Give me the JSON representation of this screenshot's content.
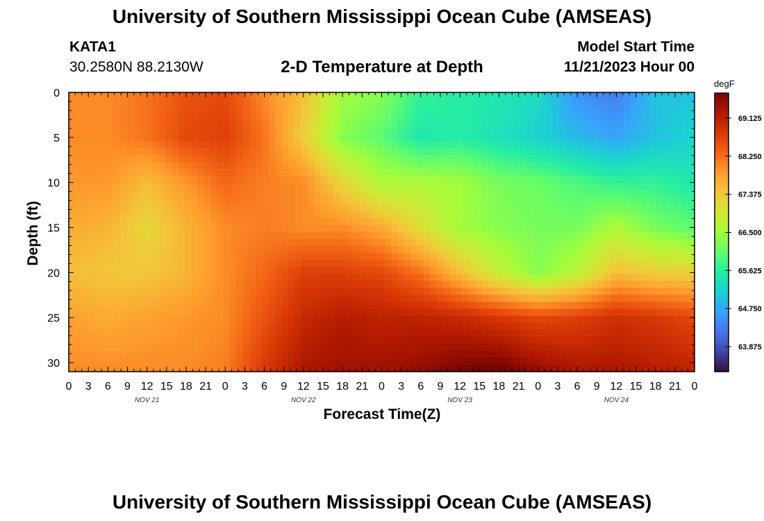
{
  "header": {
    "title": "University of Southern Mississippi Ocean Cube (AMSEAS)",
    "station_name": "KATA1",
    "station_coords": "30.2580N  88.2130W",
    "plot_title": "2-D Temperature at Depth",
    "model_start_label": "Model Start Time",
    "model_start_value": "11/21/2023 Hour 00"
  },
  "footer": {
    "title": "University of Southern Mississippi Ocean Cube (AMSEAS)"
  },
  "chart_data": {
    "type": "heatmap",
    "title": "2-D Temperature at Depth",
    "xlabel": "Forecast Time(Z)",
    "ylabel": "Depth (ft)",
    "units": "degF",
    "x_hours": [
      0,
      6,
      12,
      18,
      24,
      30,
      36,
      42,
      48,
      54,
      60,
      66,
      72,
      78,
      84,
      90,
      96
    ],
    "y_depths": [
      0,
      5,
      10,
      15,
      20,
      25,
      31
    ],
    "z": [
      [
        68.0,
        68.0,
        68.2,
        68.5,
        68.6,
        68.0,
        67.5,
        66.5,
        66.3,
        65.7,
        65.6,
        65.5,
        65.3,
        64.5,
        64.3,
        65.0,
        65.0
      ],
      [
        68.0,
        68.0,
        68.2,
        68.6,
        68.7,
        68.2,
        67.3,
        66.3,
        66.0,
        65.5,
        65.6,
        65.4,
        65.2,
        64.9,
        64.7,
        65.0,
        65.2
      ],
      [
        67.9,
        67.9,
        67.5,
        67.9,
        68.3,
        68.1,
        68.0,
        67.2,
        66.6,
        66.6,
        66.5,
        66.2,
        66.1,
        65.9,
        65.7,
        65.7,
        65.5
      ],
      [
        67.7,
        67.6,
        67.2,
        67.6,
        68.0,
        68.1,
        68.0,
        68.0,
        67.7,
        67.1,
        66.5,
        66.3,
        66.2,
        66.2,
        66.6,
        66.2,
        66.0
      ],
      [
        67.5,
        67.4,
        67.4,
        67.6,
        68.0,
        68.3,
        68.7,
        68.7,
        68.6,
        68.2,
        67.5,
        66.8,
        66.3,
        66.7,
        67.5,
        67.3,
        67.3
      ],
      [
        67.8,
        67.7,
        67.8,
        67.9,
        68.0,
        68.5,
        69.0,
        69.2,
        69.1,
        69.1,
        69.0,
        68.8,
        68.6,
        68.7,
        68.9,
        68.8,
        68.6
      ],
      [
        68.0,
        68.0,
        68.0,
        68.0,
        68.1,
        68.8,
        69.3,
        69.4,
        69.4,
        69.5,
        69.7,
        69.8,
        69.5,
        69.3,
        69.3,
        69.2,
        69.1
      ]
    ],
    "xlim": [
      0,
      96
    ],
    "ylim": [
      0,
      31
    ],
    "x_tick_labels": [
      "0",
      "3",
      "6",
      "9",
      "12",
      "15",
      "18",
      "21",
      "0",
      "3",
      "6",
      "9",
      "12",
      "15",
      "18",
      "21",
      "0",
      "3",
      "6",
      "9",
      "12",
      "15",
      "18",
      "21",
      "0",
      "3",
      "6",
      "9",
      "12",
      "15",
      "18",
      "21",
      "0"
    ],
    "y_tick_labels": [
      "0",
      "5",
      "10",
      "15",
      "20",
      "25",
      "30"
    ],
    "date_labels": [
      {
        "text": "NOV 21",
        "hour": 12
      },
      {
        "text": "NOV 22",
        "hour": 36
      },
      {
        "text": "NOV 23",
        "hour": 60
      },
      {
        "text": "NOV 24",
        "hour": 84
      }
    ],
    "colorbar": {
      "units": "degF",
      "vmin": 63.3,
      "vmax": 69.7,
      "ticks": [
        69.125,
        68.25,
        67.375,
        66.5,
        65.625,
        64.75,
        63.875
      ],
      "tick_labels": [
        "69.125",
        "68.250",
        "67.375",
        "66.500",
        "65.625",
        "64.750",
        "63.875"
      ],
      "colors": [
        "#30123b",
        "#4145ab",
        "#4675ed",
        "#39a2fc",
        "#1bcfd4",
        "#24eca6",
        "#61fc6c",
        "#a4fc3b",
        "#d1e834",
        "#f3c63a",
        "#fe9b2d",
        "#f36315",
        "#d93806",
        "#b11901",
        "#7a0402"
      ]
    }
  }
}
